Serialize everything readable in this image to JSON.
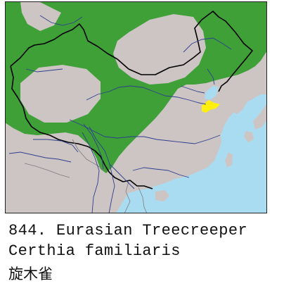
{
  "caption": {
    "title": "844. Eurasian Treecreeper",
    "scientific_name": "Certhia familiaris",
    "chinese_name": "旋木雀"
  },
  "map": {
    "colors": {
      "sea": "#a9dcf1",
      "land": "#cdc5c3",
      "range": "#3fa038",
      "highlight": "#ffef0d",
      "river": "#2e3f8e",
      "border": "#000000"
    },
    "legend": []
  }
}
